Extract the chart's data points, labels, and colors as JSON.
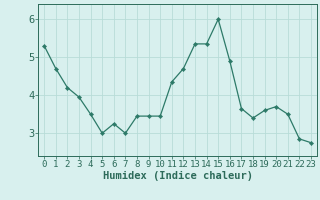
{
  "x": [
    0,
    1,
    2,
    3,
    4,
    5,
    6,
    7,
    8,
    9,
    10,
    11,
    12,
    13,
    14,
    15,
    16,
    17,
    18,
    19,
    20,
    21,
    22,
    23
  ],
  "y": [
    5.3,
    4.7,
    4.2,
    3.95,
    3.5,
    3.0,
    3.25,
    3.0,
    3.45,
    3.45,
    3.45,
    4.35,
    4.7,
    5.35,
    5.35,
    6.0,
    4.9,
    3.65,
    3.4,
    3.6,
    3.7,
    3.5,
    2.85,
    2.75
  ],
  "line_color": "#2d7a68",
  "marker": "D",
  "marker_size": 2.2,
  "bg_color": "#d8f0ee",
  "grid_color": "#b8dcd8",
  "axes_color": "#2d6b5a",
  "xlabel": "Humidex (Indice chaleur)",
  "xlabel_fontsize": 7.5,
  "ylim": [
    2.4,
    6.4
  ],
  "xlim": [
    -0.5,
    23.5
  ],
  "yticks": [
    3,
    4,
    5,
    6
  ],
  "xtick_labels": [
    "0",
    "1",
    "2",
    "3",
    "4",
    "5",
    "6",
    "7",
    "8",
    "9",
    "10",
    "11",
    "12",
    "13",
    "14",
    "15",
    "16",
    "17",
    "18",
    "19",
    "20",
    "21",
    "22",
    "23"
  ],
  "tick_fontsize": 6.5,
  "ytick_fontsize": 7.5,
  "figsize": [
    3.2,
    2.0
  ],
  "dpi": 100
}
